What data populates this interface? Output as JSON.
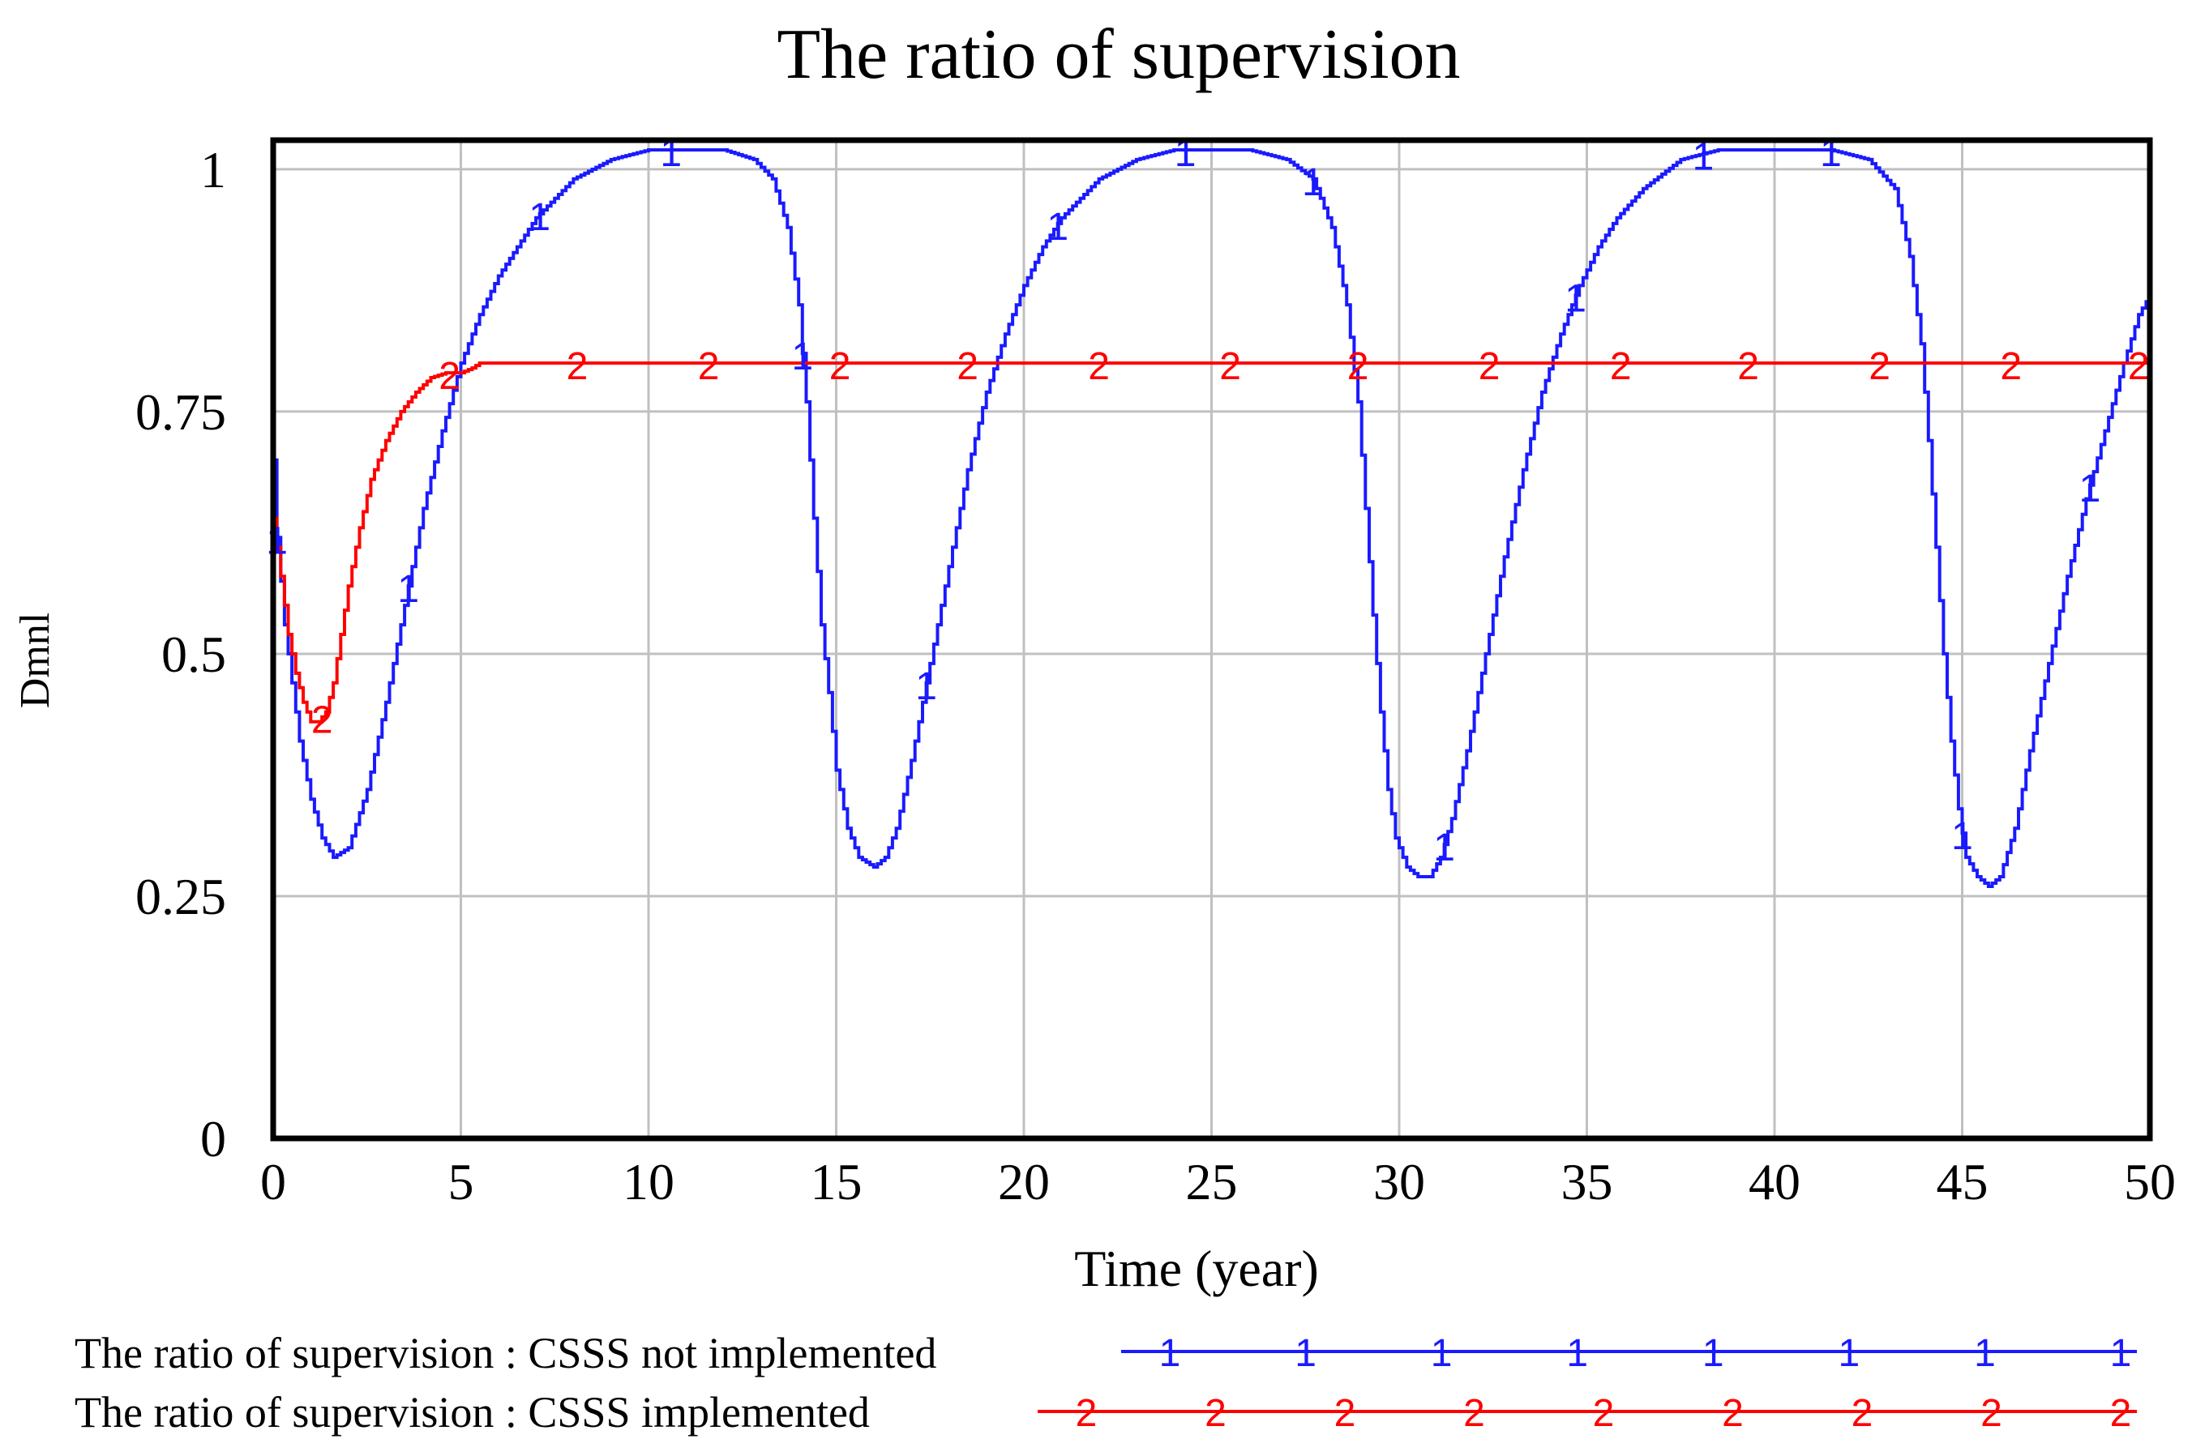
{
  "chart_data": {
    "type": "line",
    "title": "The ratio of supervision",
    "xlabel": "Time (year)",
    "ylabel": "Dmnl",
    "xlim": [
      0,
      50
    ],
    "ylim": [
      0,
      1.03
    ],
    "x_ticks": [
      0,
      5,
      10,
      15,
      20,
      25,
      30,
      35,
      40,
      45,
      50
    ],
    "x_tick_labels": [
      "0",
      "5",
      "10",
      "15",
      "20",
      "25",
      "30",
      "35",
      "40",
      "45",
      "50"
    ],
    "y_ticks": [
      0,
      0.25,
      0.5,
      0.75,
      1
    ],
    "y_tick_labels": [
      "0",
      "0.25",
      "0.5",
      "0.75",
      "1"
    ],
    "grid": true,
    "legend_position": "bottom",
    "series": [
      {
        "name": "The ratio of supervision : CSSS not implemented",
        "marker": "1",
        "color": "#1a1aff",
        "x": [
          0,
          0.1,
          0.3,
          0.5,
          0.7,
          1.0,
          1.3,
          1.6,
          2.0,
          2.5,
          3.0,
          3.5,
          4.0,
          4.5,
          5.0,
          5.5,
          6.0,
          7.0,
          8.0,
          9.0,
          10.0,
          11.0,
          12.0,
          12.8,
          13.3,
          13.7,
          14.0,
          14.2,
          14.4,
          14.6,
          14.8,
          15.0,
          15.3,
          15.6,
          16.0,
          16.3,
          16.6,
          17.0,
          17.5,
          18.0,
          18.5,
          19.0,
          19.5,
          20.0,
          20.5,
          21.0,
          22.0,
          23.0,
          24.0,
          25.0,
          26.0,
          27.0,
          27.7,
          28.2,
          28.6,
          28.9,
          29.1,
          29.3,
          29.5,
          29.7,
          29.9,
          30.2,
          30.5,
          30.8,
          31.1,
          31.4,
          31.8,
          32.3,
          32.8,
          33.3,
          33.8,
          34.3,
          34.8,
          35.3,
          35.8,
          36.5,
          37.5,
          38.5,
          39.5,
          40.5,
          41.5,
          42.5,
          43.2,
          43.6,
          43.9,
          44.1,
          44.3,
          44.5,
          44.7,
          44.9,
          45.1,
          45.4,
          45.7,
          46.0,
          46.4,
          46.8,
          47.3,
          47.8,
          48.3,
          48.8,
          49.3,
          49.7,
          50.0
        ],
        "y": [
          0.7,
          0.62,
          0.53,
          0.47,
          0.41,
          0.35,
          0.31,
          0.29,
          0.3,
          0.36,
          0.45,
          0.55,
          0.65,
          0.73,
          0.8,
          0.85,
          0.89,
          0.95,
          0.99,
          1.01,
          1.02,
          1.02,
          1.02,
          1.01,
          0.99,
          0.94,
          0.86,
          0.76,
          0.64,
          0.53,
          0.46,
          0.38,
          0.32,
          0.29,
          0.28,
          0.29,
          0.32,
          0.39,
          0.49,
          0.59,
          0.69,
          0.77,
          0.83,
          0.88,
          0.92,
          0.95,
          0.99,
          1.01,
          1.02,
          1.02,
          1.02,
          1.01,
          0.99,
          0.94,
          0.86,
          0.76,
          0.65,
          0.54,
          0.44,
          0.36,
          0.31,
          0.28,
          0.27,
          0.27,
          0.29,
          0.33,
          0.4,
          0.5,
          0.6,
          0.69,
          0.77,
          0.83,
          0.88,
          0.92,
          0.95,
          0.98,
          1.01,
          1.02,
          1.02,
          1.02,
          1.02,
          1.01,
          0.98,
          0.91,
          0.82,
          0.72,
          0.61,
          0.5,
          0.41,
          0.34,
          0.29,
          0.27,
          0.26,
          0.27,
          0.32,
          0.4,
          0.49,
          0.58,
          0.66,
          0.73,
          0.8,
          0.85,
          0.87
        ],
        "marker_x": [
          0.1,
          3.6,
          7.1,
          10.6,
          14.1,
          17.4,
          20.9,
          24.3,
          27.7,
          31.2,
          34.7,
          38.1,
          41.5,
          45.0,
          48.4
        ]
      },
      {
        "name": "The ratio of supervision : CSSS implemented",
        "marker": "2",
        "color": "#ff0000",
        "x": [
          0,
          0.2,
          0.4,
          0.6,
          0.8,
          1.0,
          1.2,
          1.4,
          1.6,
          1.8,
          2.0,
          2.3,
          2.6,
          3.0,
          3.4,
          3.8,
          4.2,
          4.6,
          5.0,
          5.3,
          5.5,
          5.8,
          50.0
        ],
        "y": [
          0.64,
          0.58,
          0.52,
          0.48,
          0.45,
          0.43,
          0.43,
          0.44,
          0.47,
          0.52,
          0.57,
          0.63,
          0.68,
          0.72,
          0.75,
          0.77,
          0.785,
          0.79,
          0.79,
          0.795,
          0.8,
          0.8,
          0.8
        ],
        "marker_x": [
          1.3,
          4.7,
          8.1,
          11.6,
          15.1,
          18.5,
          22.0,
          25.5,
          28.9,
          32.4,
          35.9,
          39.3,
          42.8,
          46.3,
          49.7
        ]
      }
    ],
    "legend_markers": {
      "series_1_count": 8,
      "series_2_count": 9
    }
  }
}
